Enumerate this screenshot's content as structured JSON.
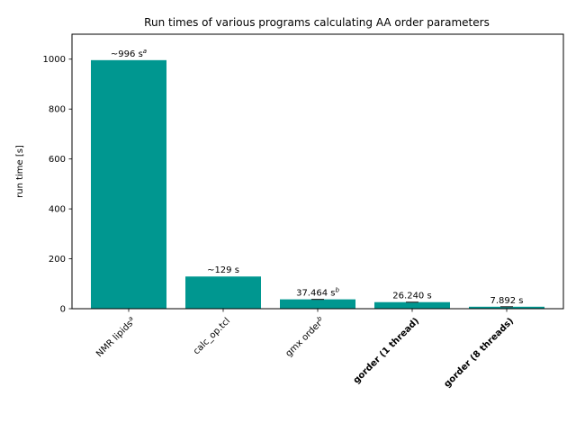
{
  "chart_data": {
    "type": "bar",
    "title": "Run times of various programs calculating AA order parameters",
    "xlabel": "",
    "ylabel": "run time [s]",
    "ylim": [
      0,
      1100
    ],
    "yticks": [
      0,
      200,
      400,
      600,
      800,
      1000
    ],
    "grid": false,
    "bar_color": "#009790",
    "categories": [
      {
        "text": "NMR lipids",
        "sup": "a",
        "bold": false
      },
      {
        "text": "calc_op.tcl",
        "sup": "",
        "bold": false
      },
      {
        "text": "gmx order",
        "sup": "b",
        "bold": false
      },
      {
        "text": "gorder (1 thread)",
        "sup": "",
        "bold": true
      },
      {
        "text": "gorder (8 threads)",
        "sup": "",
        "bold": true
      }
    ],
    "values": [
      996,
      129,
      37.464,
      26.24,
      7.892
    ],
    "data_labels": [
      {
        "text": "~996 s",
        "sup": "a"
      },
      {
        "text": "~129 s",
        "sup": ""
      },
      {
        "text": "37.464 s",
        "sup": "b"
      },
      {
        "text": "26.240 s",
        "sup": ""
      },
      {
        "text": "7.892 s",
        "sup": ""
      }
    ]
  }
}
